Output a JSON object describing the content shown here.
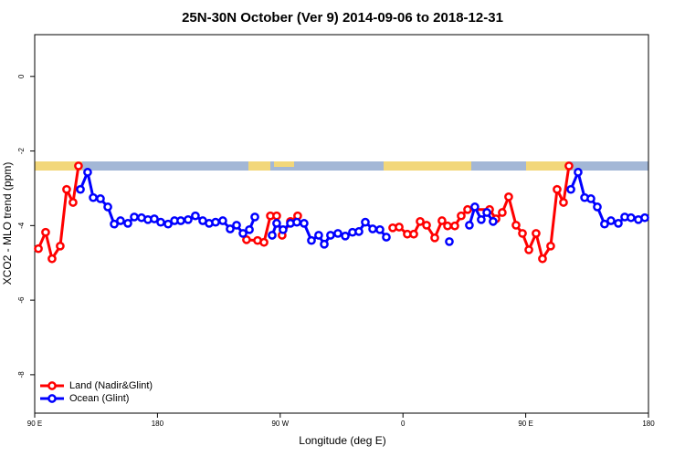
{
  "chart_data": {
    "type": "line",
    "title": "25N-30N October (Ver 9)   2014-09-06 to 2018-12-31",
    "x_label": "Longitude (deg E)",
    "y_label": "XCO2 - MLO trend (ppm)",
    "xlim": [
      90,
      540
    ],
    "xticks": [
      {
        "value": 90,
        "label": "90 E"
      },
      {
        "value": 180,
        "label": "180"
      },
      {
        "value": 270,
        "label": "90 W"
      },
      {
        "value": 360,
        "label": "0"
      },
      {
        "value": 450,
        "label": "90 E"
      },
      {
        "value": 540,
        "label": "180"
      }
    ],
    "ylim": [
      -9.03,
      1.12
    ],
    "yticks": [
      0,
      -2,
      -4,
      -6,
      -8
    ],
    "legend": "bottom-left",
    "series": [
      {
        "name": "Land (Nadir&Glint)",
        "color": "#ff0000",
        "x": [
          92.7,
          98.0,
          102.7,
          108.7,
          113.4,
          118.1,
          122.1,
          130,
          245.3,
          253.4,
          258.1,
          262.8,
          267.4,
          271.4,
          277.5,
          282.8,
          350,
          352.5,
          357.2,
          363.2,
          367.9,
          372.6,
          377.3,
          383.3,
          388.6,
          392.7,
          398.0,
          402.7,
          407.4,
          423.5,
          428.2,
          432.8,
          437.5,
          442.9,
          447.6,
          452.3,
          457.6,
          462.3,
          468.3,
          473.0,
          477.7,
          481.7
        ],
        "values": [
          -4.62,
          -4.18,
          -4.89,
          -4.55,
          -3.03,
          -3.38,
          -2.4,
          null,
          -4.38,
          -4.4,
          -4.45,
          -3.74,
          -3.74,
          -4.26,
          -3.89,
          -3.74,
          null,
          -4.06,
          -4.04,
          -4.23,
          -4.23,
          -3.89,
          -3.99,
          -4.33,
          -3.87,
          -4.01,
          -4.01,
          -3.74,
          -3.57,
          -3.57,
          -3.82,
          -3.65,
          -3.23,
          -3.99,
          -4.21,
          -4.65,
          -4.21,
          -4.89,
          -4.55,
          -3.03,
          -3.38,
          -2.4
        ]
      },
      {
        "name": "Ocean (Glint)",
        "color": "#0000ff",
        "x": [
          123.5,
          128.8,
          132.9,
          138.2,
          143.6,
          148.3,
          152.9,
          158.3,
          163.0,
          168.3,
          173.0,
          177.7,
          182.4,
          187.8,
          192.5,
          197.1,
          202.5,
          207.8,
          213.2,
          217.9,
          222.6,
          227.9,
          233.3,
          238.0,
          242.7,
          247.4,
          251.4,
          255,
          264.1,
          267.4,
          272.1,
          277.5,
          282.2,
          287.5,
          292.9,
          298.2,
          302.3,
          306.9,
          312.3,
          317.7,
          323.0,
          327.7,
          332.4,
          337.8,
          343.1,
          347.8,
          350,
          394.0,
          400,
          408.7,
          412.7,
          417.4,
          421.5,
          426.1,
          430,
          483.1,
          488.4,
          493.2,
          497.8,
          502.5,
          507.8,
          512.5,
          517.9,
          522.6,
          527.2,
          532.6,
          537.3
        ],
        "values": [
          -3.03,
          -2.57,
          -3.25,
          -3.28,
          -3.5,
          -3.96,
          -3.87,
          -3.94,
          -3.77,
          -3.79,
          -3.84,
          -3.82,
          -3.91,
          -3.96,
          -3.87,
          -3.87,
          -3.84,
          -3.74,
          -3.87,
          -3.94,
          -3.91,
          -3.87,
          -4.09,
          -3.99,
          -4.21,
          -4.11,
          -3.77,
          null,
          -4.26,
          -3.94,
          -4.11,
          -3.94,
          -3.91,
          -3.94,
          -4.4,
          -4.26,
          -4.5,
          -4.26,
          -4.21,
          -4.28,
          -4.18,
          -4.16,
          -3.91,
          -4.09,
          -4.11,
          -4.31,
          null,
          -4.43,
          null,
          -3.99,
          -3.5,
          -3.84,
          -3.65,
          -3.89,
          null,
          -3.03,
          -2.57,
          -3.25,
          -3.28,
          -3.5,
          -3.96,
          -3.87,
          -3.94,
          -3.77,
          -3.79,
          -3.84,
          -3.79
        ]
      }
    ]
  }
}
